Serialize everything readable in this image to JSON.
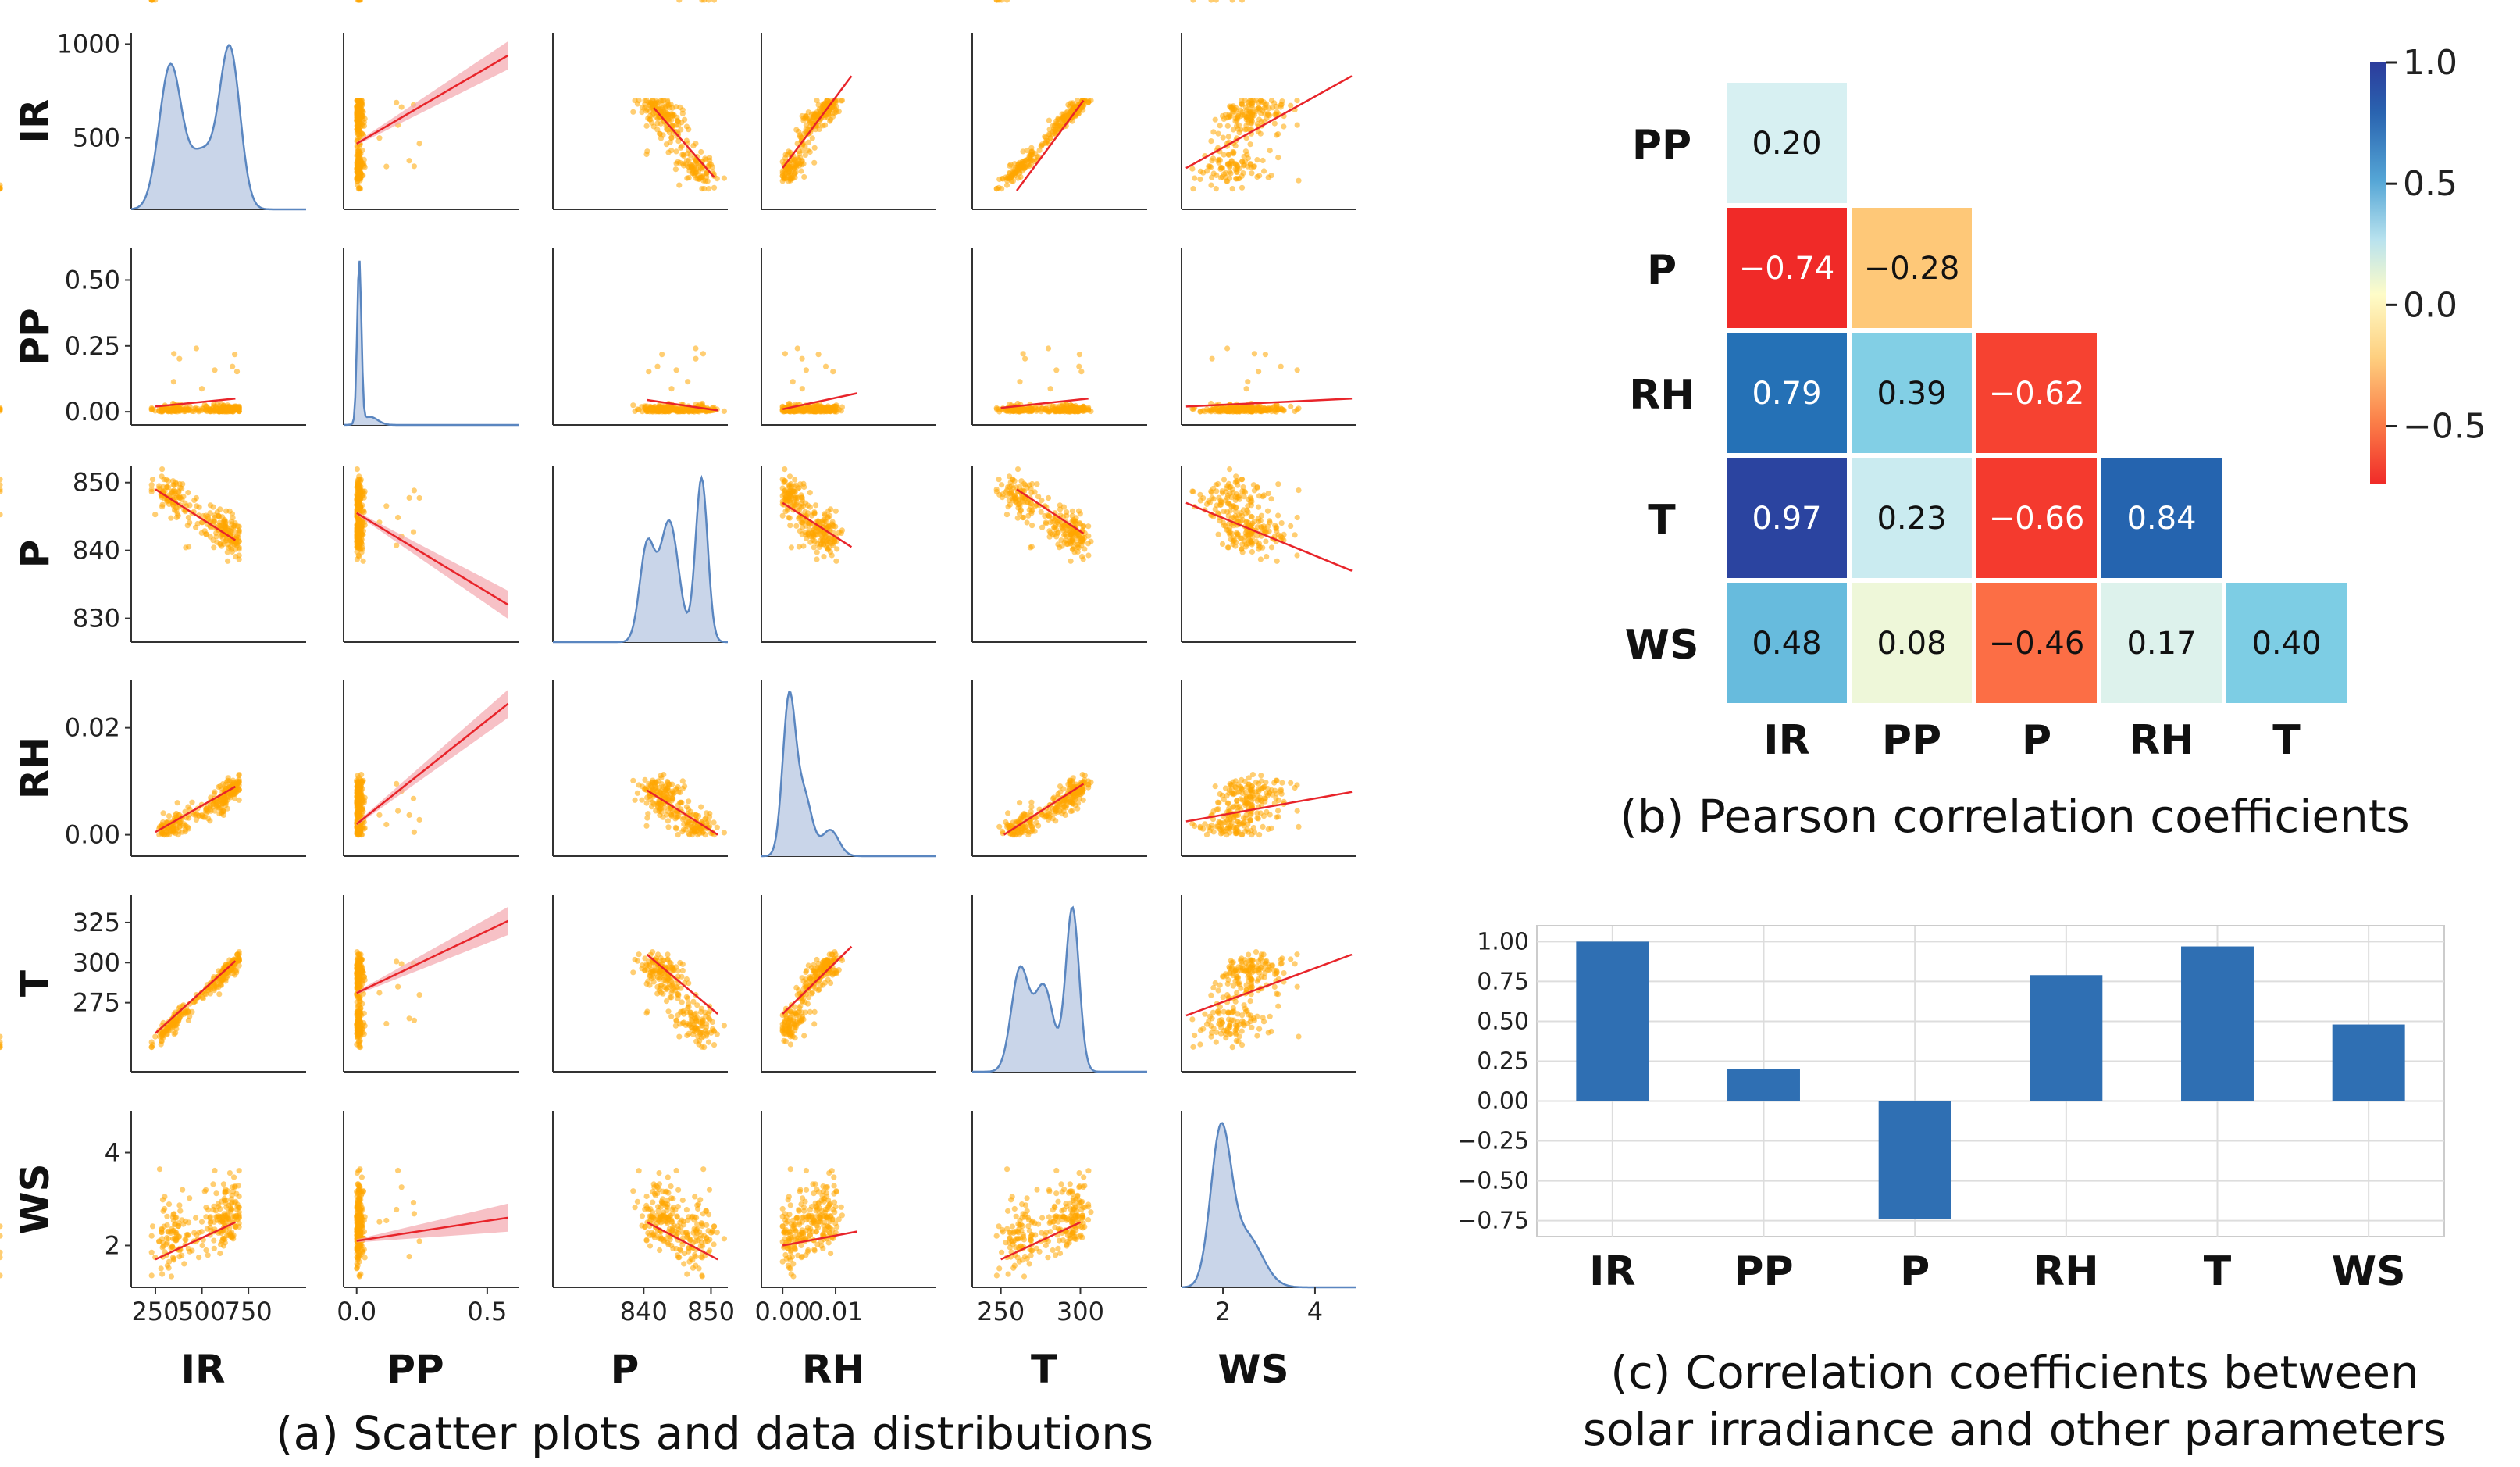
{
  "colors": {
    "scatter": "#FFA500",
    "fit": "#E8242A",
    "band": "#F4A6AE",
    "kde_fill": "#C9D5E9",
    "kde_line": "#5A86C0",
    "bar": "#2F6FB3",
    "axis": "#333333",
    "grid": "#DDDDDD"
  },
  "chart_data": [
    {
      "id": "a",
      "type": "scatter",
      "title": "(a) Scatter plots and data distributions",
      "variables": [
        "IR",
        "PP",
        "P",
        "RH",
        "T",
        "WS"
      ],
      "ranges": {
        "IR": [
          120,
          1060
        ],
        "PP": [
          -0.05,
          0.62
        ],
        "P": [
          826.5,
          852.5
        ],
        "RH": [
          -0.004,
          0.029
        ],
        "T": [
          232,
          342
        ],
        "WS": [
          1.1,
          4.9
        ]
      },
      "x_ticks": {
        "IR": [
          "250",
          "500",
          "750"
        ],
        "PP": [
          "0.0",
          "0.5"
        ],
        "P": [
          "840",
          "850"
        ],
        "RH": [
          "0.00",
          "0.01"
        ],
        "T": [
          "250",
          "300"
        ],
        "WS": [
          "2",
          "4"
        ]
      },
      "x_tick_values": {
        "IR": [
          250,
          500,
          750
        ],
        "PP": [
          0.0,
          0.5
        ],
        "P": [
          840,
          850
        ],
        "RH": [
          0.0,
          0.01
        ],
        "T": [
          250,
          300
        ],
        "WS": [
          2,
          4
        ]
      },
      "y_ticks": {
        "IR": [
          "1000",
          "500"
        ],
        "PP": [
          "0.50",
          "0.25",
          "0.00"
        ],
        "P": [
          "850",
          "840",
          "830"
        ],
        "RH": [
          "0.02",
          "0.00"
        ],
        "T": [
          "325",
          "300",
          "275"
        ],
        "WS": [
          "4",
          "2"
        ]
      },
      "y_tick_values": {
        "IR": [
          1000,
          500
        ],
        "PP": [
          0.5,
          0.25,
          0.0
        ],
        "P": [
          850,
          840,
          830
        ],
        "RH": [
          0.02,
          0.0
        ],
        "T": [
          325,
          300,
          275
        ],
        "WS": [
          4,
          2
        ]
      },
      "regression_lines": {
        "IR_PP": [
          [
            0.0,
            470
          ],
          [
            0.58,
            940
          ]
        ],
        "IR_P": [
          [
            841.5,
            660
          ],
          [
            850.5,
            290
          ]
        ],
        "IR_RH": [
          [
            0.0,
            340
          ],
          [
            0.013,
            830
          ]
        ],
        "IR_T": [
          [
            260,
            220
          ],
          [
            302,
            700
          ]
        ],
        "IR_WS": [
          [
            1.2,
            340
          ],
          [
            4.8,
            830
          ]
        ],
        "PP_IR": [
          [
            250,
            0.02
          ],
          [
            680,
            0.05
          ]
        ],
        "PP_P": [
          [
            840.5,
            0.045
          ],
          [
            851,
            0.005
          ]
        ],
        "PP_RH": [
          [
            0.0,
            0.01
          ],
          [
            0.014,
            0.07
          ]
        ],
        "PP_T": [
          [
            250,
            0.015
          ],
          [
            305,
            0.05
          ]
        ],
        "PP_WS": [
          [
            1.2,
            0.02
          ],
          [
            4.8,
            0.05
          ]
        ],
        "P_IR": [
          [
            250,
            849
          ],
          [
            680,
            841.5
          ]
        ],
        "P_PP": [
          [
            0.0,
            845.5
          ],
          [
            0.58,
            832
          ]
        ],
        "P_RH": [
          [
            0.0,
            847
          ],
          [
            0.013,
            840.5
          ]
        ],
        "P_T": [
          [
            260,
            849
          ],
          [
            302,
            842.5
          ]
        ],
        "P_WS": [
          [
            1.2,
            847
          ],
          [
            4.8,
            837
          ]
        ],
        "RH_IR": [
          [
            250,
            0.0005
          ],
          [
            680,
            0.009
          ]
        ],
        "RH_PP": [
          [
            0.0,
            0.002
          ],
          [
            0.58,
            0.0245
          ]
        ],
        "RH_P": [
          [
            840.5,
            0.0083
          ],
          [
            851,
            0.0
          ]
        ],
        "RH_T": [
          [
            252,
            0.0
          ],
          [
            302,
            0.0095
          ]
        ],
        "RH_WS": [
          [
            1.2,
            0.0025
          ],
          [
            4.8,
            0.008
          ]
        ],
        "T_IR": [
          [
            250,
            256
          ],
          [
            680,
            301
          ]
        ],
        "T_PP": [
          [
            0.0,
            281
          ],
          [
            0.58,
            326
          ]
        ],
        "T_P": [
          [
            840.5,
            305
          ],
          [
            851,
            268
          ]
        ],
        "T_RH": [
          [
            0.0,
            268
          ],
          [
            0.013,
            310
          ]
        ],
        "T_WS": [
          [
            1.2,
            267
          ],
          [
            4.8,
            305
          ]
        ],
        "WS_IR": [
          [
            250,
            1.7
          ],
          [
            680,
            2.5
          ]
        ],
        "WS_PP": [
          [
            0.0,
            2.1
          ],
          [
            0.58,
            2.6
          ]
        ],
        "WS_P": [
          [
            840.5,
            2.5
          ],
          [
            851,
            1.7
          ]
        ],
        "WS_RH": [
          [
            0.0,
            2.0
          ],
          [
            0.014,
            2.3
          ]
        ],
        "WS_T": [
          [
            250,
            1.7
          ],
          [
            300,
            2.5
          ]
        ]
      },
      "kde_modes": {
        "IR": [
          {
            "mu": 330,
            "sigma": 60,
            "w": 0.9
          },
          {
            "mu": 500,
            "sigma": 70,
            "w": 0.35
          },
          {
            "mu": 650,
            "sigma": 55,
            "w": 1.0
          }
        ],
        "PP": [
          {
            "mu": 0.01,
            "sigma": 0.008,
            "w": 1.0
          },
          {
            "mu": 0.05,
            "sigma": 0.03,
            "w": 0.05
          }
        ],
        "P": [
          {
            "mu": 840.5,
            "sigma": 1.1,
            "w": 0.55
          },
          {
            "mu": 843.8,
            "sigma": 1.4,
            "w": 0.7
          },
          {
            "mu": 848.6,
            "sigma": 0.9,
            "w": 0.95
          }
        ],
        "RH": [
          {
            "mu": 0.0012,
            "sigma": 0.0012,
            "w": 1.0
          },
          {
            "mu": 0.004,
            "sigma": 0.0015,
            "w": 0.4
          },
          {
            "mu": 0.009,
            "sigma": 0.0016,
            "w": 0.17
          }
        ],
        "T": [
          {
            "mu": 262,
            "sigma": 5.5,
            "w": 0.62
          },
          {
            "mu": 277,
            "sigma": 6,
            "w": 0.52
          },
          {
            "mu": 295,
            "sigma": 4.2,
            "w": 1.0
          }
        ],
        "WS": [
          {
            "mu": 1.95,
            "sigma": 0.22,
            "w": 1.0
          },
          {
            "mu": 2.5,
            "sigma": 0.35,
            "w": 0.35
          }
        ]
      }
    },
    {
      "id": "b",
      "type": "heatmap",
      "title": "(b) Pearson correlation coefficients",
      "row_labels": [
        "PP",
        "P",
        "RH",
        "T",
        "WS"
      ],
      "col_labels": [
        "IR",
        "PP",
        "P",
        "RH",
        "T"
      ],
      "values": [
        [
          "0.20"
        ],
        [
          "−0.74",
          "−0.28"
        ],
        [
          "0.79",
          "0.39",
          "−0.62"
        ],
        [
          "0.97",
          "0.23",
          "−0.66",
          "0.84"
        ],
        [
          "0.48",
          "0.08",
          "−0.46",
          "0.17",
          "0.40"
        ]
      ],
      "numeric": [
        [
          0.2
        ],
        [
          -0.74,
          -0.28
        ],
        [
          0.79,
          0.39,
          -0.62
        ],
        [
          0.97,
          0.23,
          -0.66,
          0.84
        ],
        [
          0.48,
          0.08,
          -0.46,
          0.17,
          0.4
        ]
      ],
      "colorbar": {
        "range": [
          -0.74,
          1.0
        ],
        "ticks": [
          "1.0",
          "0.5",
          "0.0",
          "−0.5"
        ],
        "tick_values": [
          1.0,
          0.5,
          0.0,
          -0.5
        ]
      }
    },
    {
      "id": "c",
      "type": "bar",
      "title_line1": "(c) Correlation coefficients between",
      "title_line2": "solar irradiance and other parameters",
      "categories": [
        "IR",
        "PP",
        "P",
        "RH",
        "T",
        "WS"
      ],
      "values": [
        1.0,
        0.2,
        -0.74,
        0.79,
        0.97,
        0.48
      ],
      "ylim": [
        -0.85,
        1.1
      ],
      "y_ticks": [
        "1.00",
        "0.75",
        "0.50",
        "0.25",
        "0.00",
        "−0.25",
        "−0.50",
        "−0.75"
      ],
      "y_tick_values": [
        1.0,
        0.75,
        0.5,
        0.25,
        0.0,
        -0.25,
        -0.5,
        -0.75
      ]
    }
  ]
}
